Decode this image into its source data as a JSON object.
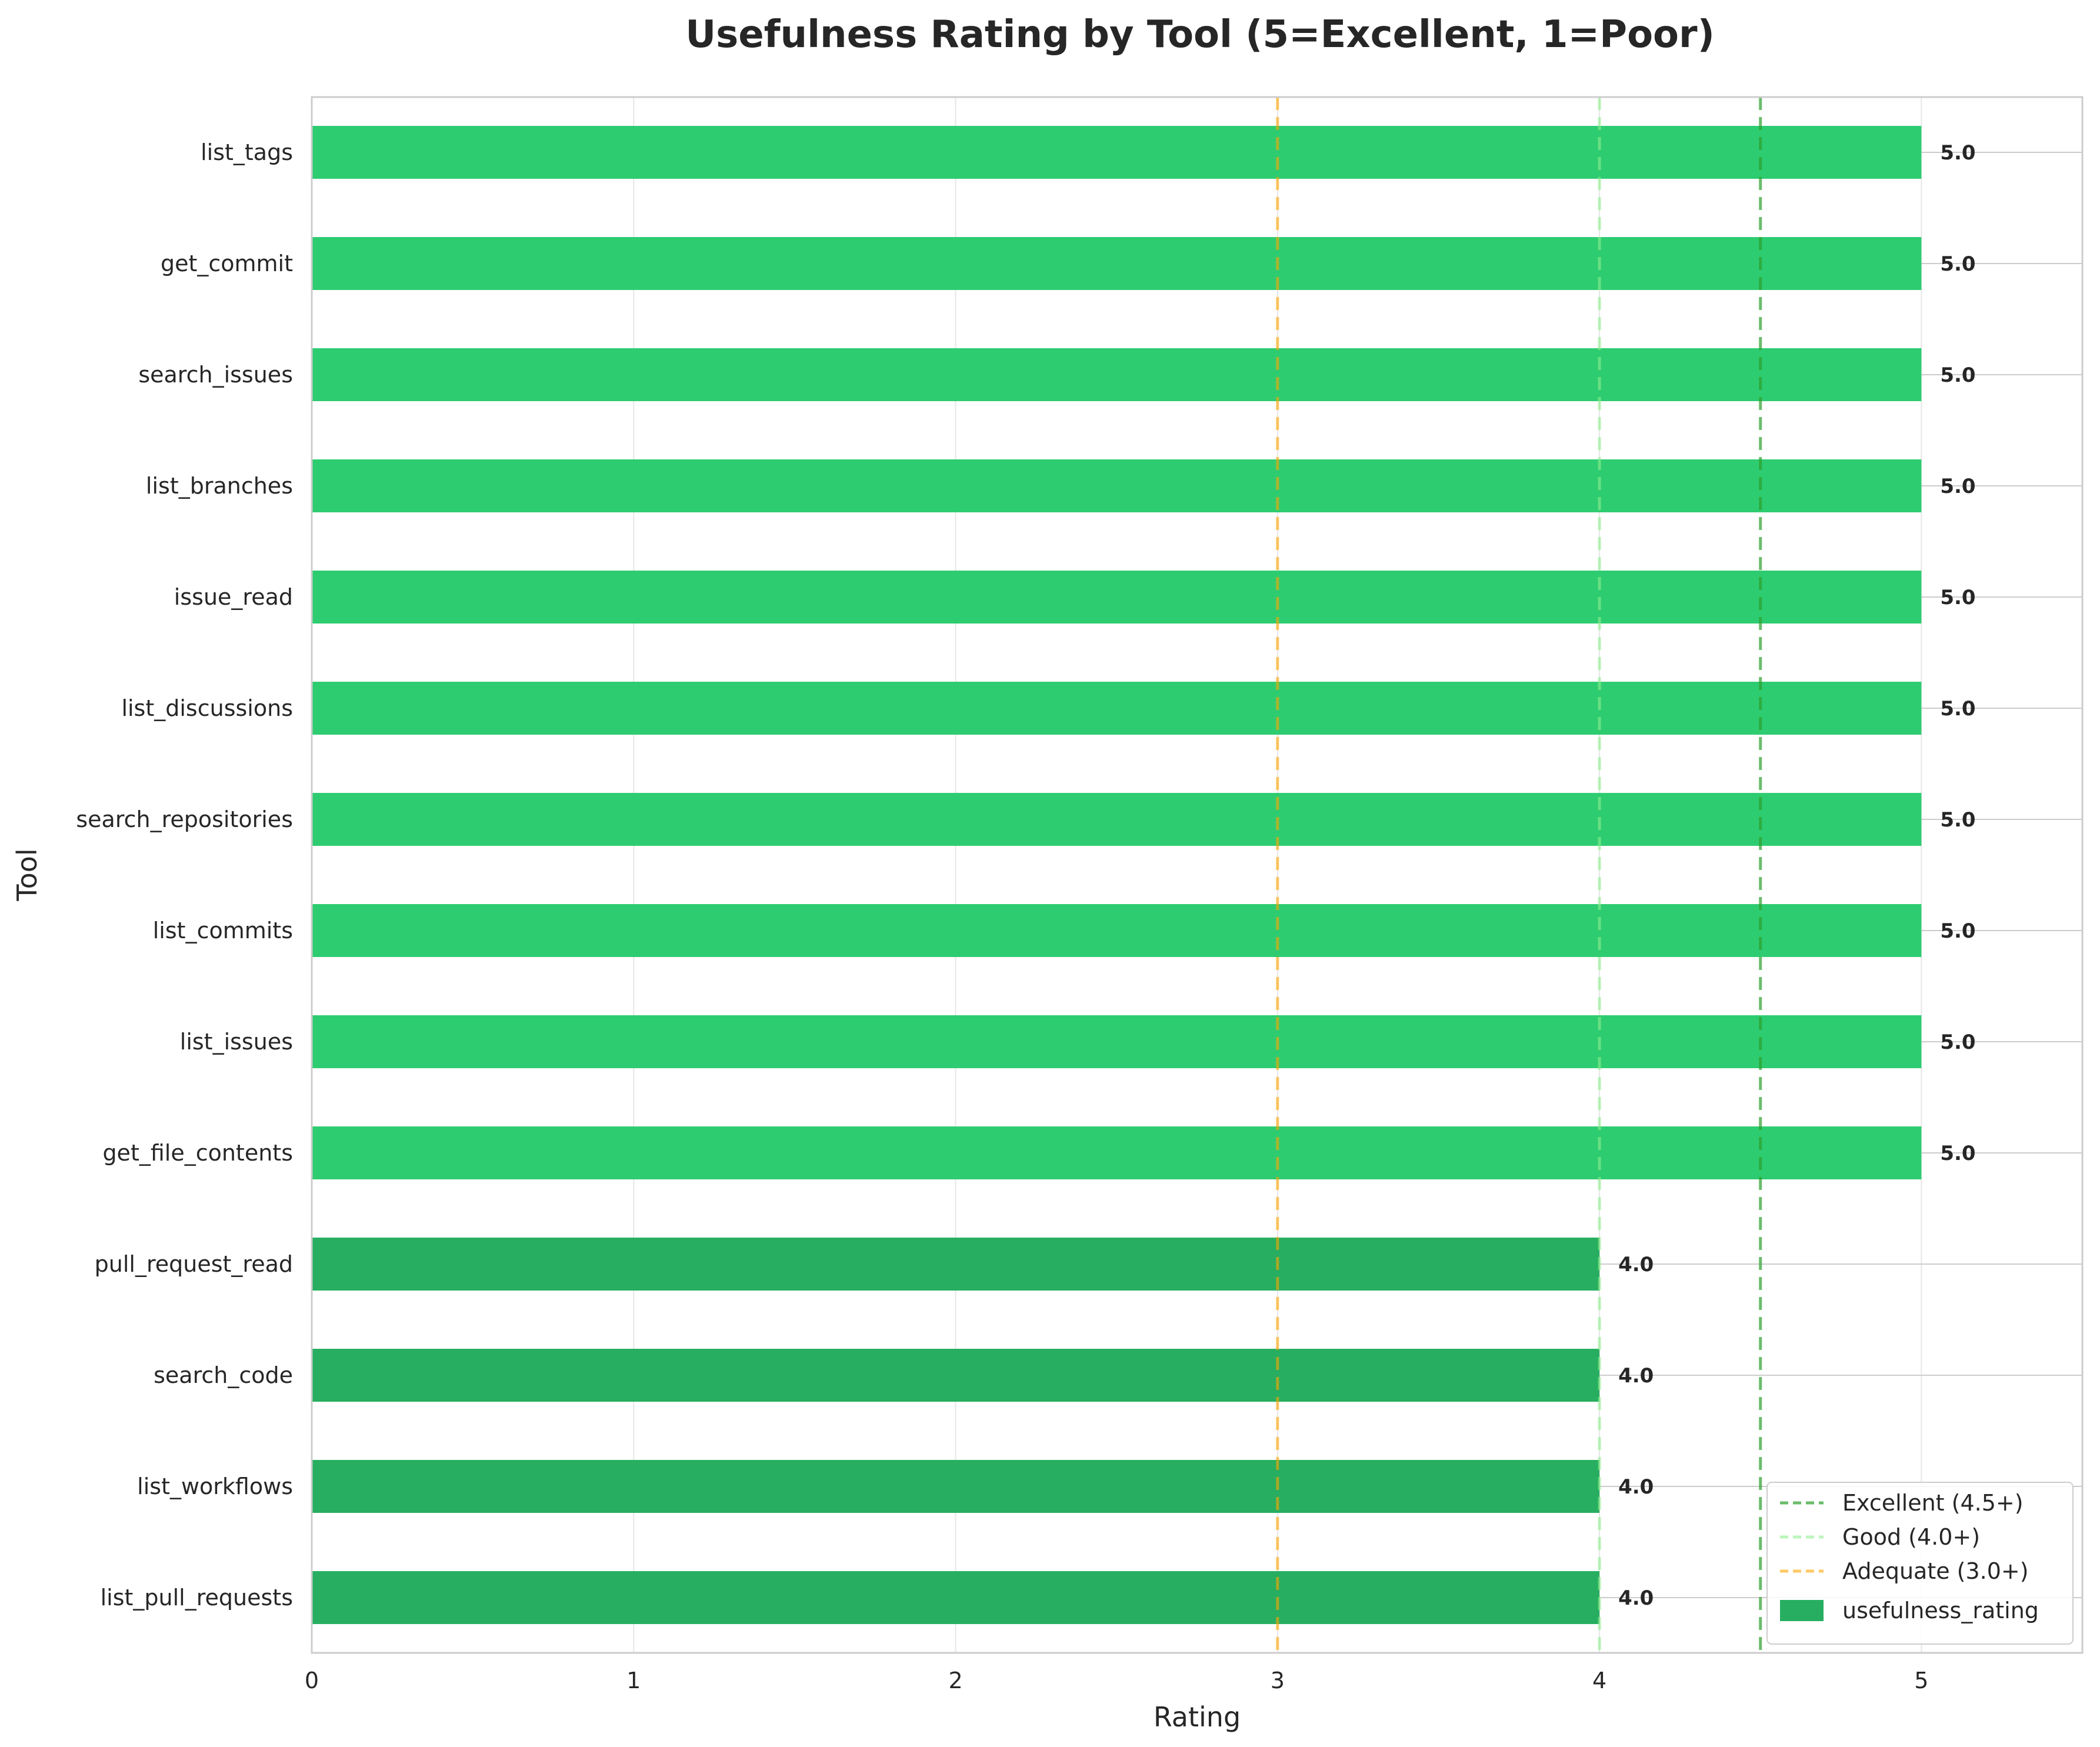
{
  "chart_data": {
    "type": "bar",
    "orientation": "horizontal",
    "title": "Usefulness Rating by Tool (5=Excellent, 1=Poor)",
    "xlabel": "Rating",
    "ylabel": "Tool",
    "xlim": [
      0,
      5.5
    ],
    "xticks": [
      "0",
      "1",
      "2",
      "3",
      "4",
      "5"
    ],
    "grid": true,
    "legend_position": "lower-right",
    "series": [
      {
        "name": "usefulness_rating",
        "categories": [
          "list_tags",
          "get_commit",
          "search_issues",
          "list_branches",
          "issue_read",
          "list_discussions",
          "search_repositories",
          "list_commits",
          "list_issues",
          "get_file_contents",
          "pull_request_read",
          "search_code",
          "list_workflows",
          "list_pull_requests"
        ],
        "values": [
          5,
          5,
          5,
          5,
          5,
          5,
          5,
          5,
          5,
          5,
          4,
          4,
          4,
          4
        ],
        "value_labels": [
          "5.0",
          "5.0",
          "5.0",
          "5.0",
          "5.0",
          "5.0",
          "5.0",
          "5.0",
          "5.0",
          "5.0",
          "4.0",
          "4.0",
          "4.0",
          "4.0"
        ]
      }
    ],
    "reference_lines": [
      {
        "name": "Excellent (4.5+)",
        "value": 4.5,
        "color": "#2ca02c",
        "opacity": 0.7
      },
      {
        "name": "Good (4.0+)",
        "value": 4.0,
        "color": "#90ee90",
        "opacity": 0.6
      },
      {
        "name": "Adequate (3.0+)",
        "value": 3.0,
        "color": "#ffa500",
        "opacity": 0.6
      }
    ],
    "colors": {
      "bar_top": "#2ecc71",
      "bar_mid": "#27ae60",
      "grid": "#e6e6e6",
      "spine": "#cccccc"
    }
  }
}
